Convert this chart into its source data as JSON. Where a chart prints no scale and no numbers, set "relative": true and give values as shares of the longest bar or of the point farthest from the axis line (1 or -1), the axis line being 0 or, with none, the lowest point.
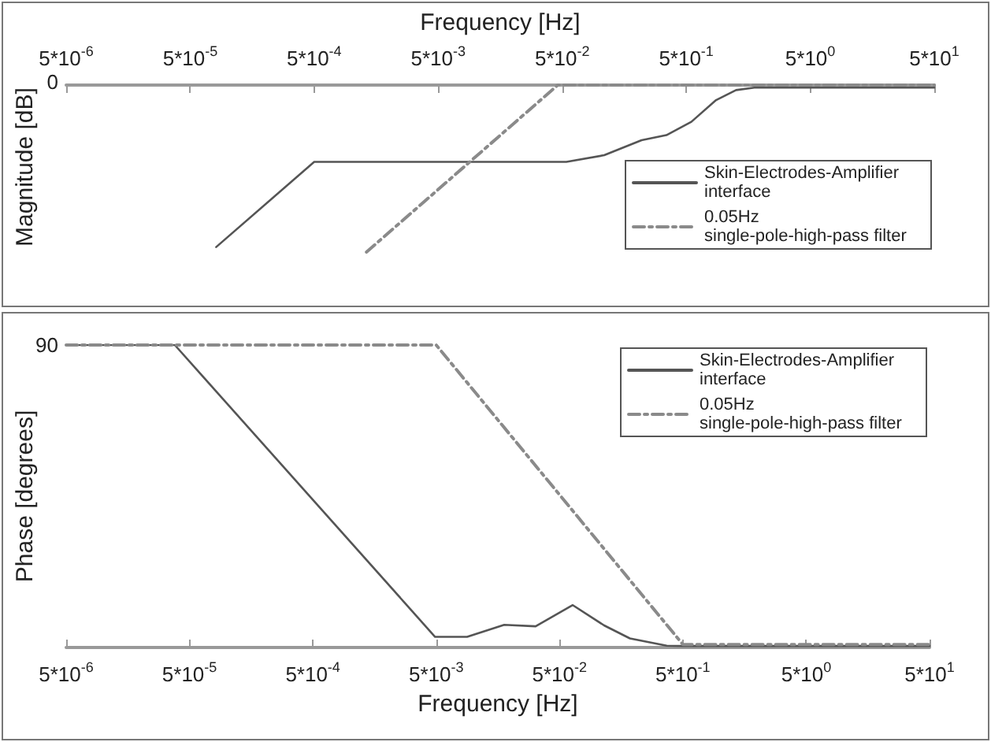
{
  "chart_data": [
    {
      "type": "line",
      "xlabel": "Frequency [Hz]",
      "ylabel": "Magnitude [dB]",
      "log": "x",
      "relative": true,
      "legend": "bottom right",
      "xlim": [
        5e-06,
        50
      ],
      "xticks": [
        {
          "value": 5e-06,
          "label": "5*10$^{-6}$"
        },
        {
          "value": 5e-05,
          "label": "5*10$^{-5}$"
        },
        {
          "value": 0.0005,
          "label": "5*10$^{-4}$"
        },
        {
          "value": 0.005,
          "label": "5*10$^{-3}$"
        },
        {
          "value": 0.05,
          "label": "5*10$^{-2}$"
        },
        {
          "value": 0.5,
          "label": "5*10$^{-1}$"
        },
        {
          "value": 5,
          "label": "5*10$^{0}$"
        },
        {
          "value": 50,
          "label": "5*10$^{1}$"
        }
      ],
      "annotations": [
        "0"
      ],
      "series": [
        {
          "name": "Skin-Electrodes-Amplifier interface",
          "color": "#555555",
          "line_style": "solid",
          "x": [
            8.1e-05,
            0.0005,
            0.054,
            0.109,
            0.218,
            0.346,
            0.55,
            0.87,
            1.26,
            1.77,
            50
          ],
          "values": [
            -0.97,
            -0.46,
            -0.46,
            -0.42,
            -0.33,
            -0.3,
            -0.22,
            -0.09,
            -0.03,
            -0.015,
            -0.015
          ]
        },
        {
          "name": "0.05Hz single-pole-high-pass filter",
          "color": "#8a8a8a",
          "line_style": "dashed",
          "x": [
            0.00132,
            0.046,
            50
          ],
          "values": [
            -1,
            0,
            0
          ]
        }
      ]
    },
    {
      "type": "line",
      "xlabel": "Frequency [Hz]",
      "ylabel": "Phase [degrees]",
      "log": "x",
      "relative": true,
      "legend": "top right",
      "xlim": [
        5e-06,
        50
      ],
      "xticks": [
        {
          "value": 5e-06,
          "label": "5*10$^{-6}$"
        },
        {
          "value": 5e-05,
          "label": "5*10$^{-5}$"
        },
        {
          "value": 0.0005,
          "label": "5*10$^{-4}$"
        },
        {
          "value": 0.005,
          "label": "5*10$^{-3}$"
        },
        {
          "value": 0.05,
          "label": "5*10$^{-2}$"
        },
        {
          "value": 0.5,
          "label": "5*10$^{-1}$"
        },
        {
          "value": 5,
          "label": "5*10$^{0}$"
        },
        {
          "value": 50,
          "label": "5*10$^{1}$"
        }
      ],
      "annotations": [
        "90"
      ],
      "series": [
        {
          "name": "Skin-Electrodes-Amplifier interface",
          "color": "#555555",
          "line_style": "solid",
          "x": [
            5e-06,
            3.8e-05,
            0.0049,
            0.0089,
            0.0178,
            0.032,
            0.064,
            0.115,
            0.186,
            0.37,
            0.5,
            50
          ],
          "values": [
            1,
            1,
            0.035,
            0.035,
            0.075,
            0.07,
            0.14,
            0.073,
            0.03,
            0.006,
            0.005,
            0.005
          ]
        },
        {
          "name": "0.05Hz single-pole-high-pass filter",
          "color": "#8a8a8a",
          "line_style": "dashed",
          "x": [
            5e-06,
            0.005,
            0.5,
            50
          ],
          "values": [
            1,
            1,
            0.01,
            0.01
          ]
        }
      ]
    }
  ]
}
